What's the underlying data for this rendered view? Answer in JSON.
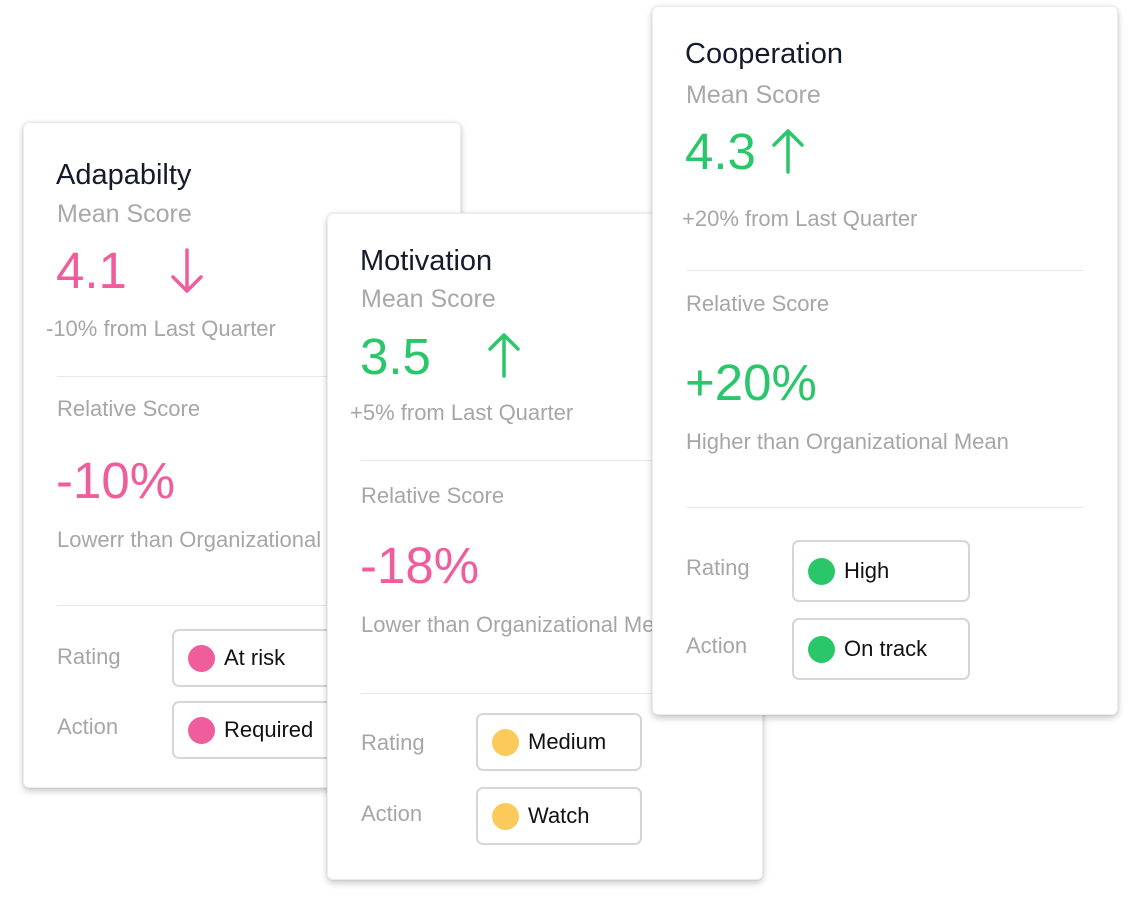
{
  "colors": {
    "negative": "#ef5d9c",
    "positive": "#2ac66a",
    "warning": "#fcc95b"
  },
  "cards": [
    {
      "title": "Adapabilty",
      "subtitle": "Mean Score",
      "score": "4.1",
      "trend_icon": "arrow-down-icon",
      "change_note": "-10% from Last Quarter",
      "relative_label": "Relative Score",
      "relative_value": "-10%",
      "relative_desc": "Lowerr  than Organizational Mean",
      "rating_label": "Rating",
      "rating_value": "At risk",
      "action_label": "Action",
      "action_value": "Required"
    },
    {
      "title": "Motivation",
      "subtitle": "Mean Score",
      "score": "3.5",
      "trend_icon": "arrow-up-icon",
      "change_note": "+5% from Last Quarter",
      "relative_label": "Relative Score",
      "relative_value": "-18%",
      "relative_desc": "Lower than Organizational Mean",
      "rating_label": "Rating",
      "rating_value": "Medium",
      "action_label": "Action",
      "action_value": "Watch"
    },
    {
      "title": "Cooperation",
      "subtitle": "Mean Score",
      "score": "4.3",
      "trend_icon": "arrow-up-icon",
      "change_note": "+20% from Last Quarter",
      "relative_label": "Relative Score",
      "relative_value": "+20%",
      "relative_desc": "Higher than Organizational Mean",
      "rating_label": "Rating",
      "rating_value": "High",
      "action_label": "Action",
      "action_value": "On track"
    }
  ]
}
